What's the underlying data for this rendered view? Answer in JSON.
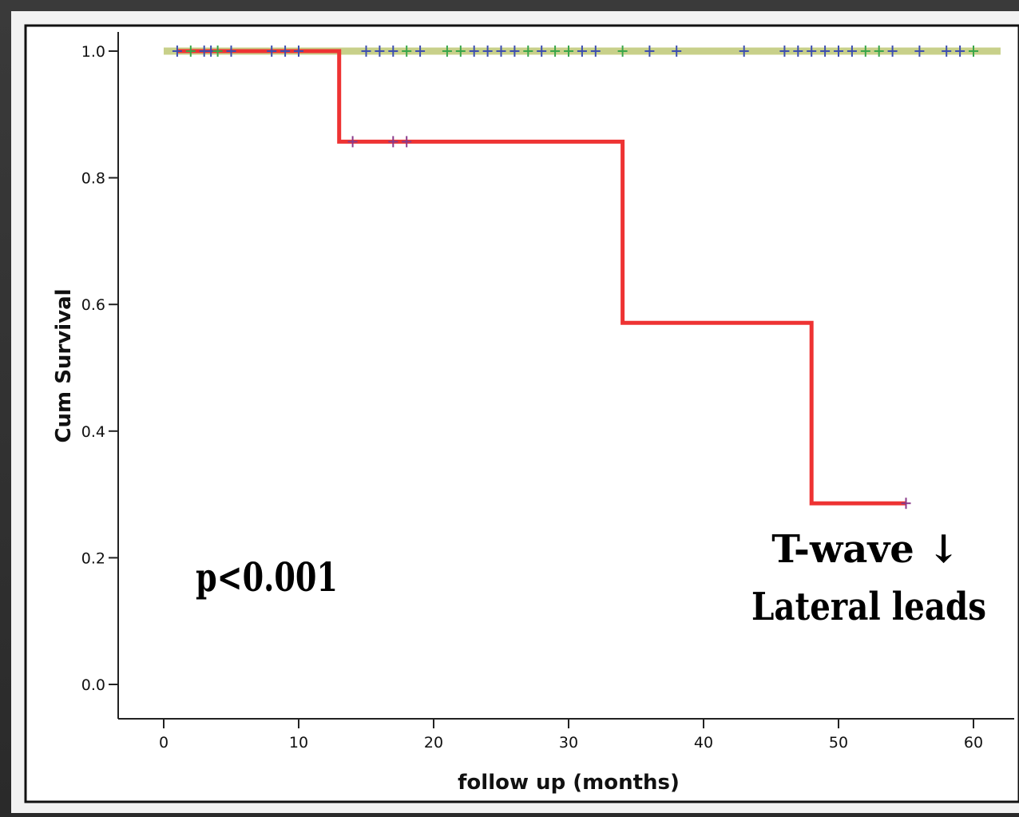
{
  "chart_data": {
    "type": "line",
    "subtype": "kaplan-meier step",
    "title": "",
    "xlabel": "follow up (months)",
    "ylabel": "Cum Survival",
    "xlim": [
      0,
      62
    ],
    "ylim": [
      0.0,
      1.0
    ],
    "x_ticks": [
      0,
      10,
      20,
      30,
      40,
      50,
      60
    ],
    "y_ticks": [
      0.0,
      0.2,
      0.4,
      0.6,
      0.8,
      1.0
    ],
    "grid": false,
    "series": [
      {
        "color": "#c8d08a",
        "censor_color": "#3d4fb0",
        "steps": [
          [
            0,
            1.0
          ],
          [
            62,
            1.0
          ]
        ],
        "censored": [
          [
            1,
            1.0
          ],
          [
            3,
            1.0
          ],
          [
            3.5,
            1.0
          ],
          [
            5,
            1.0
          ],
          [
            8,
            1.0
          ],
          [
            9,
            1.0
          ],
          [
            10,
            1.0
          ],
          [
            15,
            1.0
          ],
          [
            16,
            1.0
          ],
          [
            17,
            1.0
          ],
          [
            19,
            1.0
          ],
          [
            23,
            1.0
          ],
          [
            24,
            1.0
          ],
          [
            25,
            1.0
          ],
          [
            26,
            1.0
          ],
          [
            28,
            1.0
          ],
          [
            31,
            1.0
          ],
          [
            32,
            1.0
          ],
          [
            36,
            1.0
          ],
          [
            38,
            1.0
          ],
          [
            43,
            1.0
          ],
          [
            46,
            1.0
          ],
          [
            47,
            1.0
          ],
          [
            48,
            1.0
          ],
          [
            49,
            1.0
          ],
          [
            50,
            1.0
          ],
          [
            51,
            1.0
          ],
          [
            54,
            1.0
          ],
          [
            56,
            1.0
          ],
          [
            58,
            1.0
          ],
          [
            59,
            1.0
          ]
        ]
      },
      {
        "color": "#c8d08a",
        "censor_color": "#3aa64a",
        "steps": [
          [
            0,
            1.0
          ],
          [
            62,
            1.0
          ]
        ],
        "censored": [
          [
            2,
            1.0
          ],
          [
            4,
            1.0
          ],
          [
            18,
            1.0
          ],
          [
            21,
            1.0
          ],
          [
            22,
            1.0
          ],
          [
            27,
            1.0
          ],
          [
            29,
            1.0
          ],
          [
            30,
            1.0
          ],
          [
            34,
            1.0
          ],
          [
            52,
            1.0
          ],
          [
            53,
            1.0
          ],
          [
            60,
            1.0
          ]
        ]
      },
      {
        "color": "#ee3333",
        "censor_color": "#8a3a8a",
        "steps": [
          [
            1,
            1.0
          ],
          [
            13,
            1.0
          ],
          [
            13,
            0.857
          ],
          [
            34,
            0.857
          ],
          [
            34,
            0.571
          ],
          [
            48,
            0.571
          ],
          [
            48,
            0.286
          ],
          [
            55,
            0.286
          ]
        ],
        "censored": [
          [
            14,
            0.857
          ],
          [
            17,
            0.857
          ],
          [
            18,
            0.857
          ],
          [
            55,
            0.286
          ]
        ]
      }
    ],
    "annotations": [
      {
        "text": "p<0.001",
        "anchor": "lower-left"
      },
      {
        "text": "T-wave ↓",
        "anchor": "lower-right"
      },
      {
        "text": "Lateral leads",
        "anchor": "lower-right"
      }
    ]
  }
}
